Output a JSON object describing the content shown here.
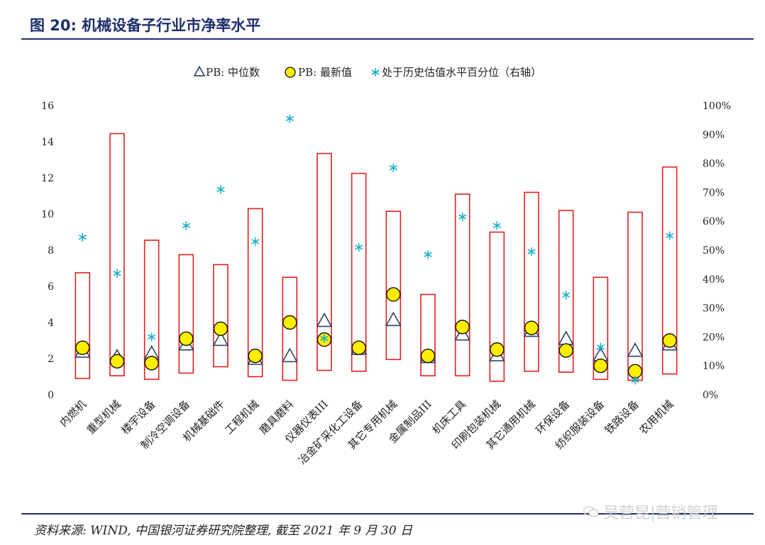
{
  "figure": {
    "title": "图 20: 机械设备子行业市净率水平",
    "source": "资料来源: WIND, 中国银河证券研究院整理, 截至 2021 年 9 月 30 日",
    "watermark": "吴营昆|营销管理"
  },
  "colors": {
    "range_box": "#e02020",
    "median_marker": "#2e4466",
    "latest_fill": "#ffee00",
    "percentile_marker": "#1aafc6",
    "title": "#1f2f6b"
  },
  "chart_data": {
    "type": "range-marker",
    "title": "",
    "categories": [
      "内燃机",
      "重型机械",
      "楼宇设备",
      "制冷空调设备",
      "机械基础件",
      "工程机械",
      "磨具磨料",
      "仪器仪表III",
      "冶金矿采化工设备",
      "其它专用机械",
      "金属制品III",
      "机床工具",
      "印刷包装机械",
      "其它通用机械",
      "环保设备",
      "纺织服装设备",
      "铁路设备",
      "农用机械"
    ],
    "range_low": [
      0.9,
      1.05,
      0.85,
      1.2,
      1.55,
      1.0,
      0.8,
      1.35,
      1.3,
      1.95,
      1.05,
      1.05,
      0.75,
      1.3,
      1.25,
      0.85,
      0.8,
      1.15
    ],
    "range_high": [
      6.75,
      14.45,
      8.55,
      7.75,
      7.2,
      10.3,
      6.5,
      13.35,
      12.25,
      10.15,
      5.55,
      11.1,
      9.0,
      11.2,
      10.2,
      6.5,
      10.1,
      12.6
    ],
    "legend": [
      "PB: 中位数",
      "PB: 最新值",
      "处于历史估值水平百分位（右轴）"
    ],
    "legend_position": "top",
    "series": [
      {
        "name": "PB: 中位数",
        "marker": "triangle",
        "axis": "left",
        "values": [
          2.35,
          2.05,
          2.25,
          2.75,
          3.0,
          1.95,
          2.1,
          4.05,
          2.5,
          4.1,
          2.05,
          3.3,
          2.15,
          3.5,
          3.05,
          2.15,
          2.4,
          2.75
        ]
      },
      {
        "name": "PB: 最新值",
        "marker": "circle",
        "axis": "left",
        "values": [
          2.6,
          1.85,
          1.75,
          3.1,
          3.65,
          2.15,
          4.0,
          3.05,
          2.6,
          5.55,
          2.15,
          3.75,
          2.5,
          3.7,
          2.45,
          1.6,
          1.3,
          3.0
        ]
      },
      {
        "name": "处于历史估值水平百分位（右轴）",
        "marker": "asterisk",
        "axis": "right",
        "values": [
          0.545,
          0.42,
          0.2,
          0.585,
          0.71,
          0.53,
          0.955,
          0.195,
          0.51,
          0.785,
          0.485,
          0.615,
          0.585,
          0.495,
          0.345,
          0.165,
          0.05,
          0.55
        ]
      }
    ],
    "left_axis": {
      "ticks": [
        0,
        2,
        4,
        6,
        8,
        10,
        12,
        14,
        16
      ],
      "ylim": [
        0,
        16
      ]
    },
    "right_axis": {
      "ticks": [
        "0%",
        "10%",
        "20%",
        "30%",
        "40%",
        "50%",
        "60%",
        "70%",
        "80%",
        "90%",
        "100%"
      ],
      "ylim": [
        0,
        1
      ]
    },
    "grid": false
  }
}
